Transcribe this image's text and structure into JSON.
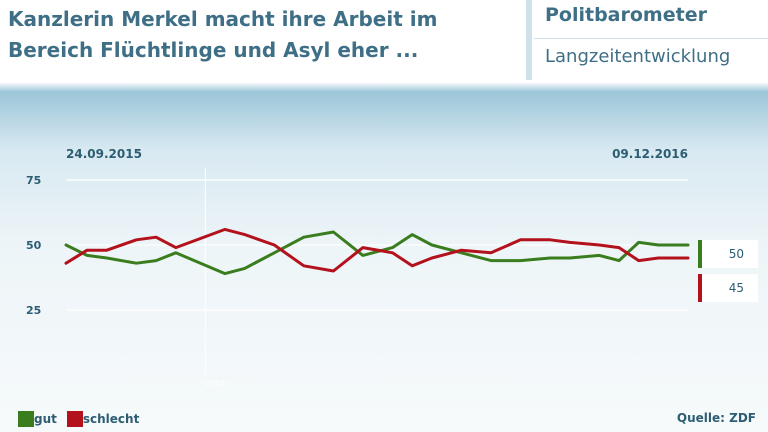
{
  "header": {
    "headline_line1": "Kanzlerin Merkel macht ihre Arbeit im",
    "headline_line2": "Bereich Flüchtlinge und Asyl eher ...",
    "brand": "Politbarometer",
    "subtitle": "Langzeitentwicklung"
  },
  "footer": {
    "source": "Quelle: ZDF"
  },
  "colors": {
    "gut": "#3a7d1e",
    "schlecht": "#b3121d"
  },
  "chart_data": {
    "type": "line",
    "title": "Kanzlerin Merkel macht ihre Arbeit im Bereich Flüchtlinge und Asyl eher ...",
    "start_label": "24.09.2015",
    "end_label": "09.12.2016",
    "year_marker": {
      "label": "2016",
      "date": "01.01.2016"
    },
    "ylim": [
      25,
      75
    ],
    "yticks": [
      75,
      50,
      25
    ],
    "grid": true,
    "legend": "bottom-left",
    "x": [
      "24.09.2015",
      "09.10.2015",
      "23.10.2015",
      "13.11.2015",
      "27.11.2015",
      "11.12.2015",
      "15.01.2016",
      "29.01.2016",
      "19.02.2016",
      "11.03.2016",
      "01.04.2016",
      "22.04.2016",
      "13.05.2016",
      "27.05.2016",
      "10.06.2016",
      "01.07.2016",
      "22.07.2016",
      "12.08.2016",
      "02.09.2016",
      "16.09.2016",
      "07.10.2016",
      "21.10.2016",
      "04.11.2016",
      "18.11.2016",
      "25.11.2016",
      "09.12.2016"
    ],
    "series": [
      {
        "name": "gut",
        "values": [
          50,
          46,
          45,
          43,
          44,
          47,
          39,
          41,
          47,
          53,
          55,
          46,
          49,
          54,
          50,
          47,
          44,
          44,
          45,
          45,
          46,
          44,
          51,
          50,
          50,
          50
        ]
      },
      {
        "name": "schlecht",
        "values": [
          43,
          48,
          48,
          52,
          53,
          49,
          56,
          54,
          50,
          42,
          40,
          49,
          47,
          42,
          45,
          48,
          47,
          52,
          52,
          51,
          50,
          49,
          44,
          45,
          45,
          45
        ]
      }
    ],
    "end_values": {
      "gut": "50",
      "schlecht": "45"
    }
  }
}
